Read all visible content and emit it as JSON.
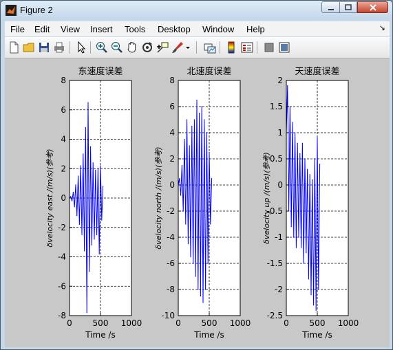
{
  "window": {
    "title": "Figure 2"
  },
  "menu": [
    "File",
    "Edit",
    "View",
    "Insert",
    "Tools",
    "Desktop",
    "Window",
    "Help"
  ],
  "menu_extra": "↘",
  "toolbar": [
    "new-figure",
    "open-file",
    "save",
    "print",
    "edit-plot",
    "zoom-in",
    "zoom-out",
    "pan",
    "rotate-3d",
    "data-cursor",
    "brush",
    "brush-dropdown",
    "link-plot",
    "insert-colorbar",
    "insert-legend",
    "hide-plot-tools",
    "show-plot-tools"
  ],
  "colors": {
    "line": "#0000ff",
    "figure_bg": "#c8c8c8",
    "axes_bg": "#ffffff"
  },
  "chart_data": [
    {
      "type": "line",
      "title": "东速度误差",
      "xlabel": "Time /s",
      "ylabel": "δvelocity east /(m/s)(参考)",
      "xlim": [
        0,
        1000
      ],
      "ylim": [
        -8,
        8
      ],
      "xticks": [
        0,
        500,
        1000
      ],
      "yticks": [
        -8,
        -6,
        -4,
        -2,
        0,
        2,
        4,
        6,
        8
      ],
      "grid": true,
      "series": [
        {
          "x": [
            0,
            20,
            40,
            60,
            80,
            100,
            120,
            140,
            160,
            180,
            200,
            220,
            240,
            260,
            280,
            300,
            320,
            340,
            360,
            380,
            400,
            420,
            440,
            460,
            480,
            500,
            520,
            540
          ],
          "y": [
            0,
            0.1,
            -0.2,
            0.4,
            -0.6,
            0.9,
            -1.2,
            1.5,
            -1.8,
            2.2,
            -2.5,
            3.0,
            -3.6,
            4.8,
            -7.8,
            6.5,
            -5.0,
            3.5,
            -3.2,
            2.4,
            -2.8,
            1.9,
            -2.5,
            2.0,
            -3.8,
            2.2,
            -1.5,
            0.8
          ]
        }
      ]
    },
    {
      "type": "line",
      "title": "北速度误差",
      "xlabel": "Time /s",
      "ylabel": "δvelocity north /(m/s)(参考)",
      "xlim": [
        0,
        1000
      ],
      "ylim": [
        -10,
        8
      ],
      "xticks": [
        0,
        500,
        1000
      ],
      "yticks": [
        -10,
        -8,
        -6,
        -4,
        -2,
        0,
        2,
        4,
        6,
        8
      ],
      "grid": true,
      "series": [
        {
          "x": [
            0,
            20,
            40,
            60,
            80,
            100,
            120,
            140,
            160,
            180,
            200,
            220,
            240,
            260,
            280,
            300,
            320,
            340,
            360,
            380,
            400,
            420,
            440,
            460,
            480,
            500,
            520,
            540
          ],
          "y": [
            0,
            0.5,
            -0.8,
            1.5,
            -2.0,
            3.5,
            -3.0,
            5.0,
            -4.5,
            3.0,
            -5.5,
            4.5,
            -6.0,
            5.0,
            -7.0,
            6.5,
            -8.0,
            5.5,
            -8.5,
            6.0,
            -9.0,
            5.0,
            -8.0,
            4.0,
            -6.0,
            2.5,
            -3.0,
            0.5
          ]
        }
      ]
    },
    {
      "type": "line",
      "title": "天速度误差",
      "xlabel": "Time /s",
      "ylabel": "δvelocity up /(m/s)(参考)",
      "xlim": [
        0,
        1000
      ],
      "ylim": [
        -2.5,
        2
      ],
      "xticks": [
        0,
        500,
        1000
      ],
      "yticks": [
        -2.5,
        -2,
        -1.5,
        -1,
        -0.5,
        0,
        0.5,
        1,
        1.5,
        2
      ],
      "grid": true,
      "series": [
        {
          "x": [
            0,
            20,
            40,
            60,
            80,
            100,
            120,
            140,
            160,
            180,
            200,
            220,
            240,
            260,
            280,
            300,
            320,
            340,
            360,
            380,
            400,
            420,
            440,
            460,
            480,
            500,
            520,
            540
          ],
          "y": [
            1.0,
            1.9,
            -0.5,
            1.5,
            -0.8,
            1.2,
            -1.0,
            1.0,
            -1.2,
            0.8,
            -1.0,
            0.6,
            -1.2,
            0.8,
            -1.5,
            0.5,
            -1.3,
            0.3,
            -1.8,
            0.2,
            -2.1,
            0.1,
            -2.3,
            0.5,
            -2.4,
            0.9,
            -2.0,
            0.4
          ]
        }
      ]
    }
  ]
}
